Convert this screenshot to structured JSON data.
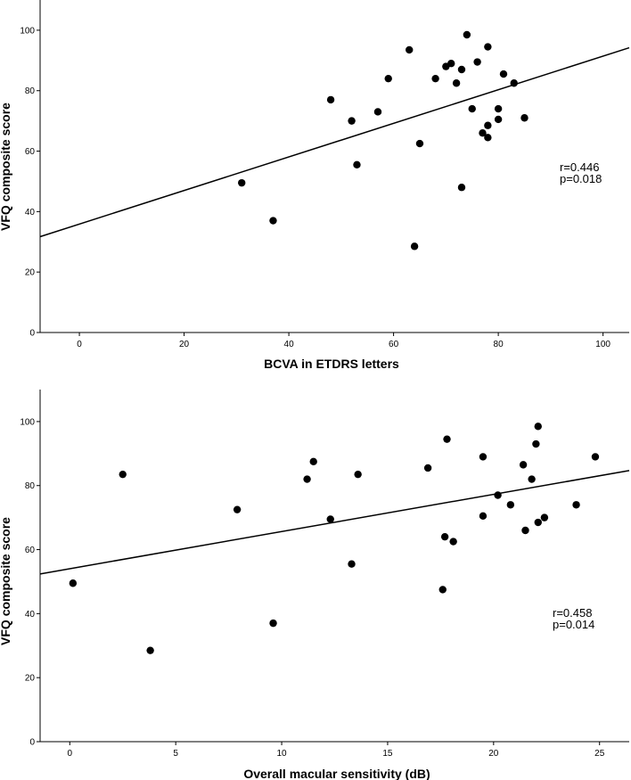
{
  "chart_data": [
    {
      "type": "scatter",
      "xlabel": "BCVA in ETDRS letters",
      "ylabel": "VFQ composite score",
      "xlim": [
        -7.5,
        105
      ],
      "ylim": [
        0,
        110
      ],
      "x_ticks": [
        0,
        20,
        40,
        60,
        80,
        100
      ],
      "y_ticks": [
        0,
        20,
        40,
        60,
        80,
        100
      ],
      "grid": false,
      "annotation": [
        "r=0.446",
        "p=0.018"
      ],
      "trendline": {
        "x": [
          -7.5,
          105
        ],
        "y": [
          31.7,
          94.2
        ]
      },
      "points": [
        {
          "x": 31,
          "y": 49.5
        },
        {
          "x": 37,
          "y": 37
        },
        {
          "x": 48,
          "y": 77
        },
        {
          "x": 52,
          "y": 70
        },
        {
          "x": 53,
          "y": 55.5
        },
        {
          "x": 57,
          "y": 73
        },
        {
          "x": 59,
          "y": 84
        },
        {
          "x": 63,
          "y": 93.5
        },
        {
          "x": 64,
          "y": 28.5
        },
        {
          "x": 65,
          "y": 62.5
        },
        {
          "x": 68,
          "y": 84
        },
        {
          "x": 70,
          "y": 88
        },
        {
          "x": 71,
          "y": 89
        },
        {
          "x": 72,
          "y": 82.5
        },
        {
          "x": 73,
          "y": 87
        },
        {
          "x": 73,
          "y": 48
        },
        {
          "x": 74,
          "y": 98.5
        },
        {
          "x": 75,
          "y": 74
        },
        {
          "x": 76,
          "y": 89.5
        },
        {
          "x": 77,
          "y": 66
        },
        {
          "x": 78,
          "y": 94.5
        },
        {
          "x": 78,
          "y": 68.5
        },
        {
          "x": 78,
          "y": 64.5
        },
        {
          "x": 80,
          "y": 70.5
        },
        {
          "x": 80,
          "y": 74
        },
        {
          "x": 81,
          "y": 85.5
        },
        {
          "x": 83,
          "y": 82.5
        },
        {
          "x": 85,
          "y": 71
        }
      ]
    },
    {
      "type": "scatter",
      "xlabel": "Overall macular sensitivity (dB)",
      "ylabel": "VFQ composite score",
      "xlim": [
        -1.4,
        26.4
      ],
      "ylim": [
        0,
        110
      ],
      "x_ticks": [
        0,
        5,
        10,
        15,
        20,
        25
      ],
      "y_ticks": [
        0,
        20,
        40,
        60,
        80,
        100
      ],
      "grid": false,
      "annotation": [
        "r=0.458",
        "p=0.014"
      ],
      "trendline": {
        "x": [
          -1.4,
          26.4
        ],
        "y": [
          52.4,
          84.7
        ]
      },
      "points": [
        {
          "x": 0.15,
          "y": 49.5
        },
        {
          "x": 2.5,
          "y": 83.5
        },
        {
          "x": 3.8,
          "y": 28.5
        },
        {
          "x": 7.9,
          "y": 72.5
        },
        {
          "x": 9.6,
          "y": 37
        },
        {
          "x": 11.2,
          "y": 82
        },
        {
          "x": 11.5,
          "y": 87.5
        },
        {
          "x": 12.3,
          "y": 69.5
        },
        {
          "x": 13.3,
          "y": 55.5
        },
        {
          "x": 13.6,
          "y": 83.5
        },
        {
          "x": 16.9,
          "y": 85.5
        },
        {
          "x": 17.6,
          "y": 47.5
        },
        {
          "x": 17.7,
          "y": 64
        },
        {
          "x": 17.8,
          "y": 94.5
        },
        {
          "x": 18.1,
          "y": 62.5
        },
        {
          "x": 19.5,
          "y": 89
        },
        {
          "x": 19.5,
          "y": 70.5
        },
        {
          "x": 20.2,
          "y": 77
        },
        {
          "x": 20.8,
          "y": 74
        },
        {
          "x": 21.4,
          "y": 86.5
        },
        {
          "x": 21.5,
          "y": 66
        },
        {
          "x": 21.8,
          "y": 82
        },
        {
          "x": 22.0,
          "y": 93
        },
        {
          "x": 22.1,
          "y": 68.5
        },
        {
          "x": 22.1,
          "y": 98.5
        },
        {
          "x": 22.4,
          "y": 70
        },
        {
          "x": 23.9,
          "y": 74
        },
        {
          "x": 24.8,
          "y": 89
        }
      ]
    }
  ]
}
